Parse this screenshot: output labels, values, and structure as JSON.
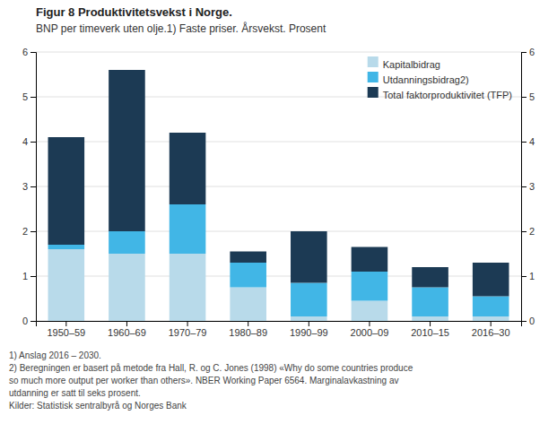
{
  "chart_data": {
    "type": "bar",
    "stacked": true,
    "title": "Figur 8 Produktivitetsvekst i Norge.",
    "subtitle": "BNP per timeverk uten olje.1) Faste priser. Årsvekst. Prosent",
    "categories": [
      "1950–59",
      "1960–69",
      "1970–79",
      "1980–89",
      "1990–99",
      "2000–09",
      "2010–15",
      "2016–30"
    ],
    "series": [
      {
        "name": "Kapitalbidrag",
        "color": "#b8daea",
        "values": [
          1.6,
          1.5,
          1.5,
          0.75,
          0.1,
          0.45,
          0.1,
          0.1
        ]
      },
      {
        "name": "Utdanningsbidrag2)",
        "color": "#41b6e6",
        "values": [
          0.1,
          0.5,
          1.1,
          0.55,
          0.75,
          0.65,
          0.65,
          0.45
        ]
      },
      {
        "name": "Total faktorproduktivitet (TFP)",
        "color": "#1c3a54",
        "values": [
          2.4,
          3.6,
          1.6,
          0.25,
          1.15,
          0.55,
          0.45,
          0.75
        ]
      }
    ],
    "ylim": [
      0,
      6
    ],
    "yticks": [
      0,
      1,
      2,
      3,
      4,
      5,
      6
    ],
    "y2lim": [
      0,
      6
    ],
    "y2ticks": [
      0,
      1,
      2,
      3,
      4,
      5,
      6
    ],
    "grid": true,
    "legend": "upper right",
    "annotations": [
      "1) Anslag 2016 – 2030.",
      "2) Beregningen er basert på metode fra Hall, R. og C. Jones (1998) «Why do some countries produce",
      "so much more output per worker than others». NBER Working Paper 6564. Marginalavkastning av",
      "utdanning er satt til seks prosent.",
      "Kilder: Statistisk sentralbyrå og Norges Bank"
    ]
  }
}
